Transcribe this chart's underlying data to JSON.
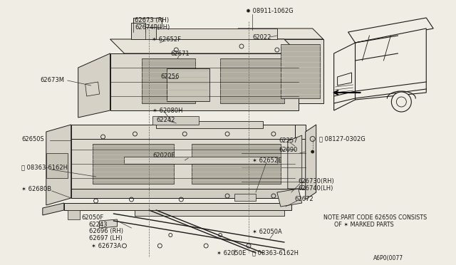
{
  "bg_color": "#f0ede4",
  "line_color": "#1a1a1a",
  "text_color": "#1a1a1a",
  "fig_id": "A6P0(0077",
  "note_line1": "NOTE:PART CODE 62650S CONSISTS",
  "note_line2": "      OF ✶ MARKED PARTS"
}
